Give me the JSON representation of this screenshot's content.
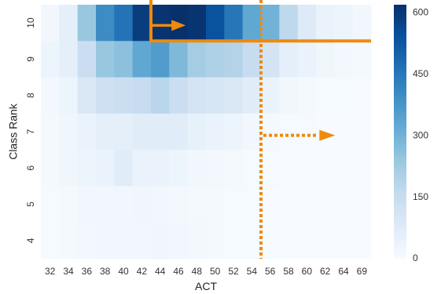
{
  "chart_data": {
    "type": "heatmap",
    "title": "",
    "xlabel": "ACT",
    "ylabel": "Class Rank",
    "x_categories": [
      "32",
      "34",
      "36",
      "38",
      "40",
      "42",
      "44",
      "46",
      "48",
      "50",
      "52",
      "54",
      "56",
      "58",
      "60",
      "62",
      "64",
      "69"
    ],
    "y_categories": [
      "10",
      "9",
      "8",
      "7",
      "6",
      "5",
      "4"
    ],
    "values": [
      [
        20,
        60,
        240,
        400,
        460,
        590,
        610,
        620,
        610,
        540,
        450,
        330,
        300,
        170,
        80,
        40,
        30,
        20
      ],
      [
        30,
        60,
        140,
        240,
        260,
        330,
        360,
        280,
        220,
        200,
        190,
        150,
        110,
        60,
        40,
        25,
        15,
        10
      ],
      [
        15,
        30,
        90,
        130,
        140,
        150,
        180,
        140,
        110,
        100,
        90,
        70,
        40,
        20,
        10,
        5,
        5,
        0
      ],
      [
        10,
        25,
        40,
        60,
        60,
        70,
        70,
        70,
        50,
        40,
        30,
        20,
        10,
        5,
        5,
        0,
        0,
        0
      ],
      [
        10,
        25,
        30,
        40,
        70,
        40,
        40,
        30,
        20,
        15,
        10,
        5,
        5,
        0,
        0,
        0,
        0,
        0
      ],
      [
        5,
        10,
        20,
        20,
        20,
        25,
        20,
        15,
        10,
        10,
        5,
        5,
        0,
        0,
        0,
        0,
        0,
        0
      ],
      [
        5,
        10,
        15,
        20,
        20,
        20,
        25,
        20,
        15,
        10,
        5,
        5,
        5,
        0,
        0,
        0,
        0,
        0
      ]
    ],
    "colorbar": {
      "min": 0,
      "max": 620,
      "ticks": [
        0,
        150,
        300,
        450,
        600
      ]
    },
    "colorscale": [
      "#f7fbff",
      "#deebf7",
      "#c6dbef",
      "#9ecae1",
      "#6baed6",
      "#4292c6",
      "#2171b5",
      "#08519c",
      "#08306b"
    ],
    "annotation_color": "#f08a0b",
    "annotations": [
      {
        "kind": "solid-bracket",
        "x": "44",
        "y": "10",
        "description": "solid line along top of rank 10 from ACT 44 to right edge, with arrow pointing right"
      },
      {
        "kind": "dotted-threshold",
        "x": "56",
        "y": "7",
        "description": "dotted vertical line at ACT 56 with dotted arrow pointing right at rank 7"
      }
    ]
  }
}
